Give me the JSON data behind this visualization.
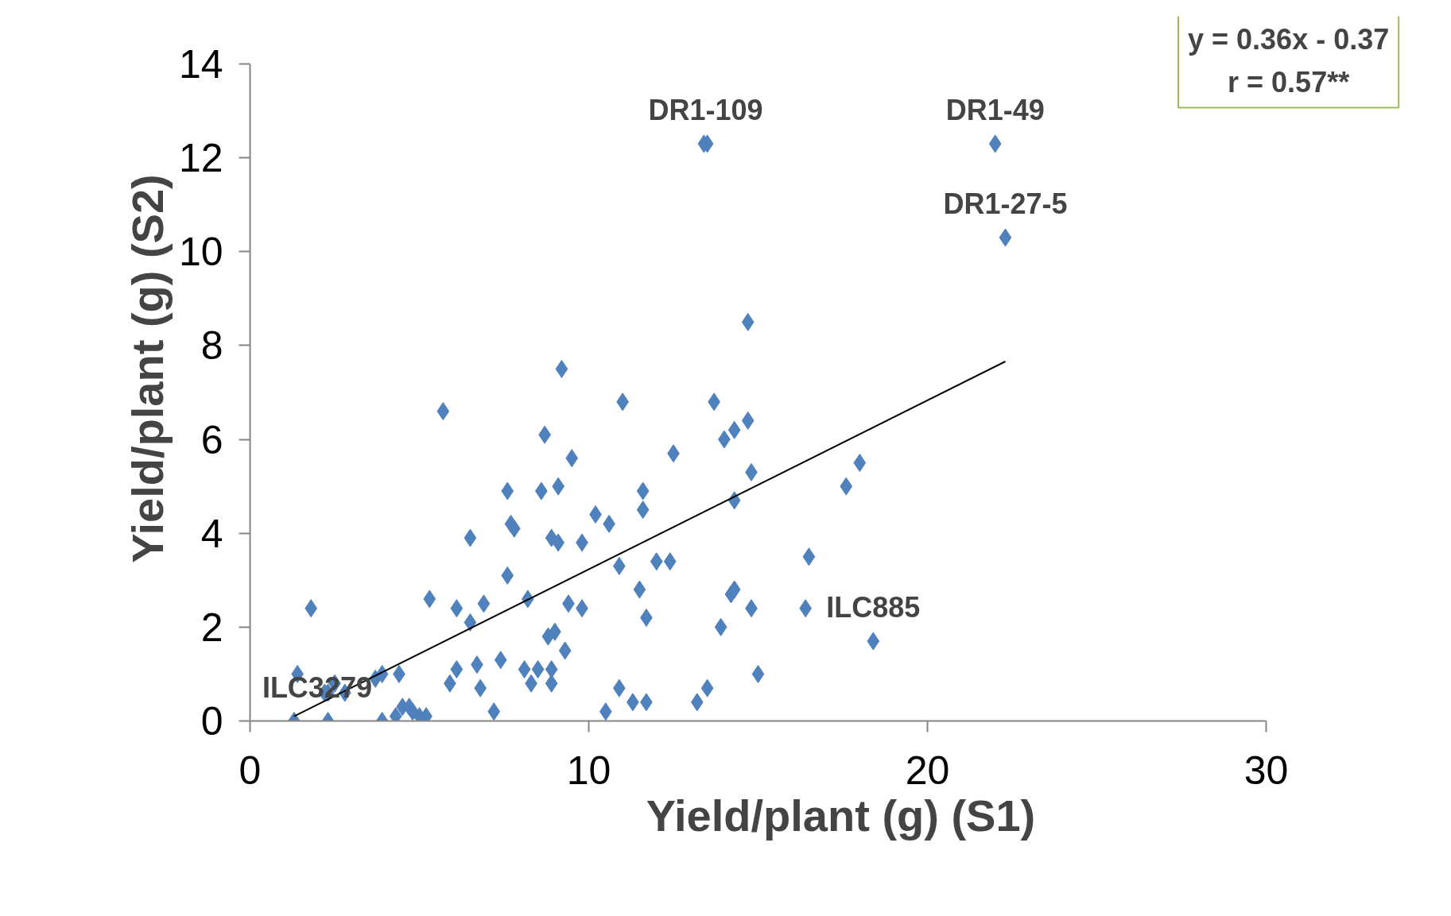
{
  "chart_data": {
    "type": "scatter",
    "xlabel": "Yield/plant (g) (S1)",
    "ylabel": "Yield/plant (g) (S2)",
    "xlim": [
      0,
      30
    ],
    "xticks": [
      0,
      10,
      20,
      30
    ],
    "ylim": [
      0,
      14
    ],
    "yticks": [
      0,
      2,
      4,
      6,
      8,
      10,
      12,
      14
    ],
    "grid": false,
    "marker": "diamond",
    "series": [
      {
        "color": "#4f81bd",
        "x": [
          1.4,
          1.3,
          1.8,
          2.2,
          2.3,
          2.3,
          2.5,
          2.8,
          3.7,
          3.9,
          3.9,
          4.4,
          4.3,
          4.5,
          4.7,
          4.8,
          5.0,
          5.2,
          5.3,
          5.7,
          5.9,
          6.1,
          6.1,
          6.5,
          6.5,
          6.7,
          6.8,
          6.9,
          7.2,
          7.4,
          7.6,
          7.6,
          7.7,
          7.8,
          8.1,
          8.2,
          8.3,
          8.5,
          8.6,
          8.7,
          8.8,
          8.9,
          8.9,
          8.9,
          9.0,
          9.1,
          9.1,
          9.2,
          9.3,
          9.4,
          9.5,
          9.8,
          9.8,
          10.2,
          10.5,
          10.6,
          10.9,
          10.9,
          11.0,
          11.3,
          11.5,
          11.6,
          11.6,
          11.7,
          11.7,
          12.0,
          12.4,
          12.5,
          13.2,
          13.4,
          13.5,
          13.5,
          13.7,
          13.9,
          14.0,
          14.2,
          14.3,
          14.3,
          14.3,
          14.7,
          14.7,
          14.8,
          14.8,
          15.0,
          16.4,
          16.5,
          17.6,
          18.0,
          18.4,
          22.0,
          22.3
        ],
        "values": [
          1.0,
          0,
          2.4,
          0.6,
          0.6,
          0,
          0.8,
          0.6,
          0.9,
          1.0,
          0,
          1.0,
          0.1,
          0.3,
          0.3,
          0.2,
          0.1,
          0.1,
          2.6,
          6.6,
          0.8,
          1.1,
          2.4,
          2.1,
          3.9,
          1.2,
          0.7,
          2.5,
          0.2,
          1.3,
          3.1,
          4.9,
          4.2,
          4.1,
          1.1,
          2.6,
          0.8,
          1.1,
          4.9,
          6.1,
          1.8,
          3.9,
          0.8,
          1.1,
          1.9,
          3.8,
          5.0,
          7.5,
          1.5,
          2.5,
          5.6,
          2.4,
          3.8,
          4.4,
          0.2,
          4.2,
          3.3,
          0.7,
          6.8,
          0.4,
          2.8,
          4.9,
          4.5,
          0.4,
          2.2,
          3.4,
          3.4,
          5.7,
          0.4,
          12.3,
          12.3,
          0.7,
          6.8,
          2.0,
          6.0,
          2.7,
          2.8,
          6.2,
          4.7,
          8.5,
          6.4,
          2.4,
          5.3,
          1.0,
          2.4,
          3.5,
          5.0,
          5.5,
          1.7,
          12.3,
          10.3
        ]
      },
      {
        "type": "line",
        "color": "#000000",
        "marker": "none",
        "line_style": "solid",
        "x": [
          1.3,
          22.3
        ],
        "values": [
          0.1,
          7.66
        ]
      }
    ],
    "annotations": [
      {
        "text": "DR1-109",
        "x": 13.45,
        "y": 12.3
      },
      {
        "text": "DR1-49",
        "x": 22.0,
        "y": 12.3
      },
      {
        "text": "DR1-27-5",
        "x": 22.3,
        "y": 10.3
      },
      {
        "text": "ILC885",
        "x": 18.4,
        "y": 1.7
      },
      {
        "text": "ILC3279",
        "x": 1.3,
        "y": 0
      },
      "y = 0.36x - 0.37",
      "r = 0.57**"
    ]
  }
}
